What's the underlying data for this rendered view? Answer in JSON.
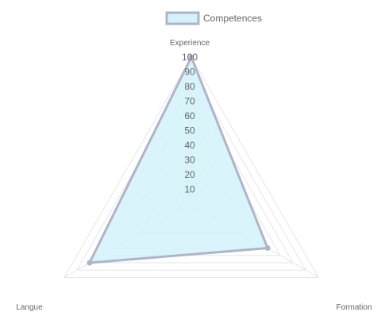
{
  "chart_data": {
    "type": "radar",
    "categories": [
      "Experience",
      "Formation",
      "Langue"
    ],
    "series": [
      {
        "name": "Competences",
        "values": [
          100,
          60,
          80
        ]
      }
    ],
    "rlim": [
      0,
      100
    ],
    "ticks": [
      "10",
      "20",
      "30",
      "40",
      "50",
      "60",
      "70",
      "80",
      "90",
      "100"
    ],
    "legend_position": "top",
    "grid": true,
    "colors": {
      "series_fill": "#d4f2fc",
      "series_stroke": "#b0b4c8",
      "grid": "#e6e6e6",
      "text": "#666666"
    }
  }
}
